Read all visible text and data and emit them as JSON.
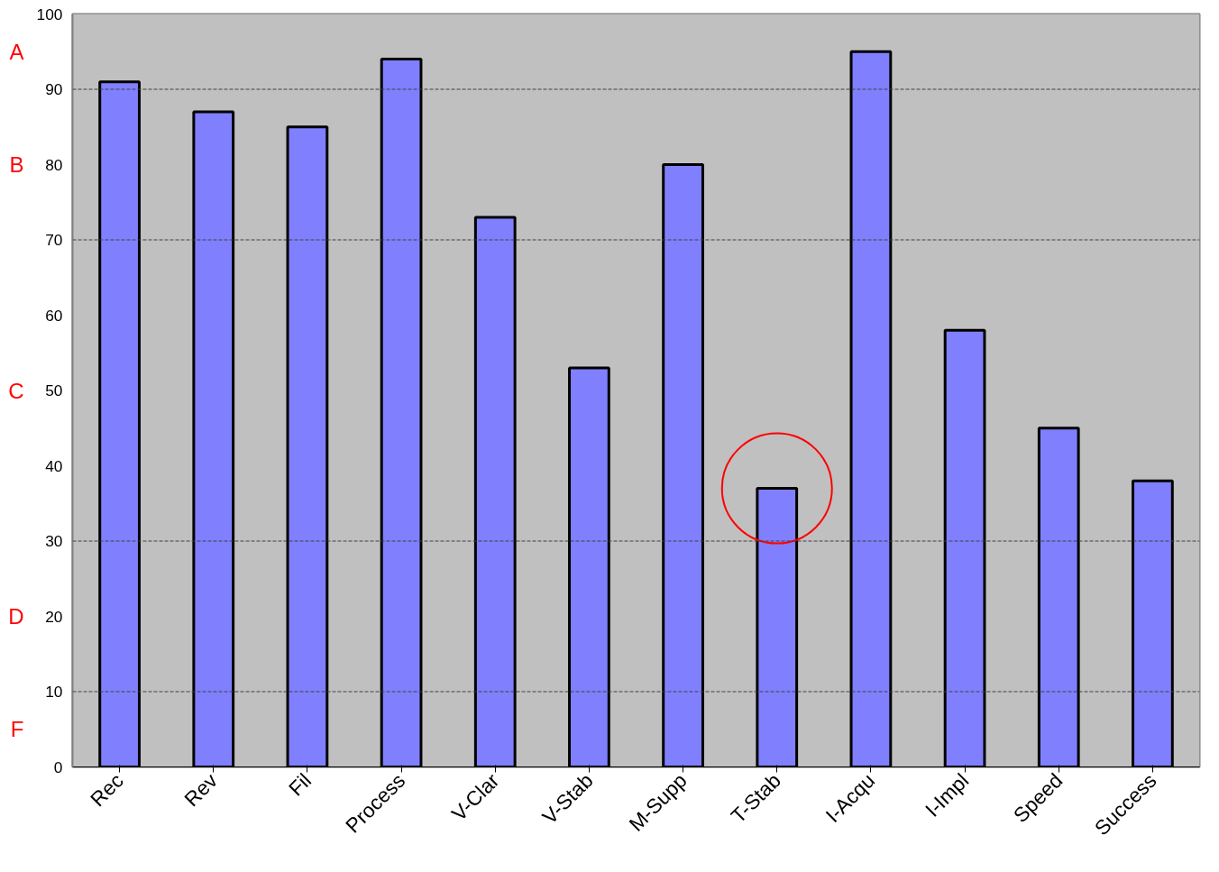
{
  "chart_data": {
    "type": "bar",
    "categories": [
      "Rec",
      "Rev",
      "Fil",
      "Process",
      "V-Clar",
      "V-Stab",
      "M-Supp",
      "T-Stab",
      "I-Acqu",
      "I-Impl",
      "Speed",
      "Success"
    ],
    "values": [
      91,
      87,
      85,
      94,
      73,
      53,
      80,
      37,
      95,
      58,
      45,
      38
    ],
    "color": "#8080ff",
    "ylim": [
      0,
      100
    ],
    "yticks": [
      0,
      10,
      20,
      30,
      40,
      50,
      60,
      70,
      80,
      90,
      100
    ],
    "grid": false,
    "ref_lines": [
      {
        "axis": "y",
        "value": 90,
        "line_style": "dashed"
      },
      {
        "axis": "y",
        "value": 70,
        "line_style": "dashed"
      },
      {
        "axis": "y",
        "value": 30,
        "line_style": "dashed"
      },
      {
        "axis": "y",
        "value": 10,
        "line_style": "dashed"
      }
    ],
    "bands": [
      {
        "axis": "y",
        "from": 90,
        "to": 100,
        "label": "A",
        "color": "#c0c0c0"
      },
      {
        "axis": "y",
        "from": 70,
        "to": 90,
        "label": "B",
        "color": "#c0c0c0"
      },
      {
        "axis": "y",
        "from": 30,
        "to": 70,
        "label": "C",
        "color": "#c0c0c0"
      },
      {
        "axis": "y",
        "from": 10,
        "to": 30,
        "label": "D",
        "color": "#c0c0c0"
      },
      {
        "axis": "y",
        "from": 0,
        "to": 10,
        "label": "F",
        "color": "#c0c0c0"
      }
    ]
  }
}
